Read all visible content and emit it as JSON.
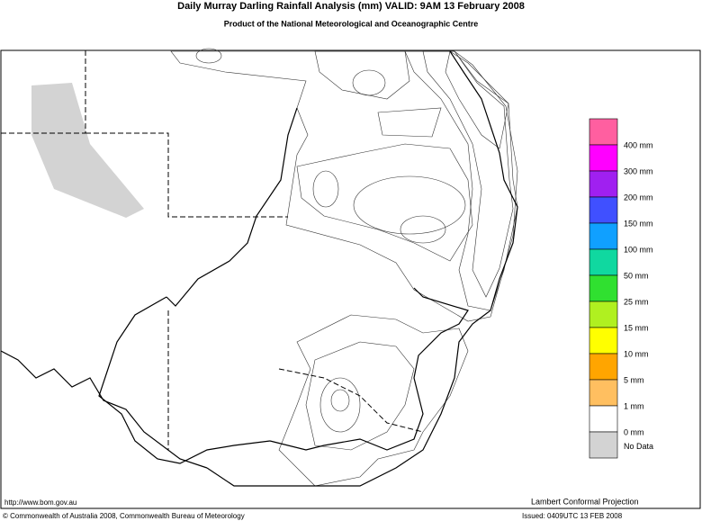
{
  "header": {
    "title": "Daily Murray Darling Rainfall Analysis (mm)   VALID: 9AM 13 February 2008",
    "subtitle": "Product of the National Meteorological and Oceanographic Centre"
  },
  "legend": {
    "colors": [
      "#ff5fa0",
      "#ff00ff",
      "#a020f0",
      "#4050ff",
      "#10a0ff",
      "#10d8a0",
      "#30e030",
      "#b0f020",
      "#ffff00",
      "#ffa500",
      "#ffbf60",
      "#ffffff",
      "#d3d3d3"
    ],
    "labels": [
      "400 mm",
      "300 mm",
      "200 mm",
      "150 mm",
      "100 mm",
      "50 mm",
      "25 mm",
      "15 mm",
      "10 mm",
      "5 mm",
      "1 mm",
      "0 mm"
    ],
    "no_data": "No Data"
  },
  "footer": {
    "url": "http://www.bom.gov.au",
    "copyright": "© Commonwealth of Australia 2008, Commonwealth Bureau of Meteorology",
    "projection": "Lambert Conformal Projection",
    "issued": "Issued: 0409UTC 13 FEB 2008"
  }
}
